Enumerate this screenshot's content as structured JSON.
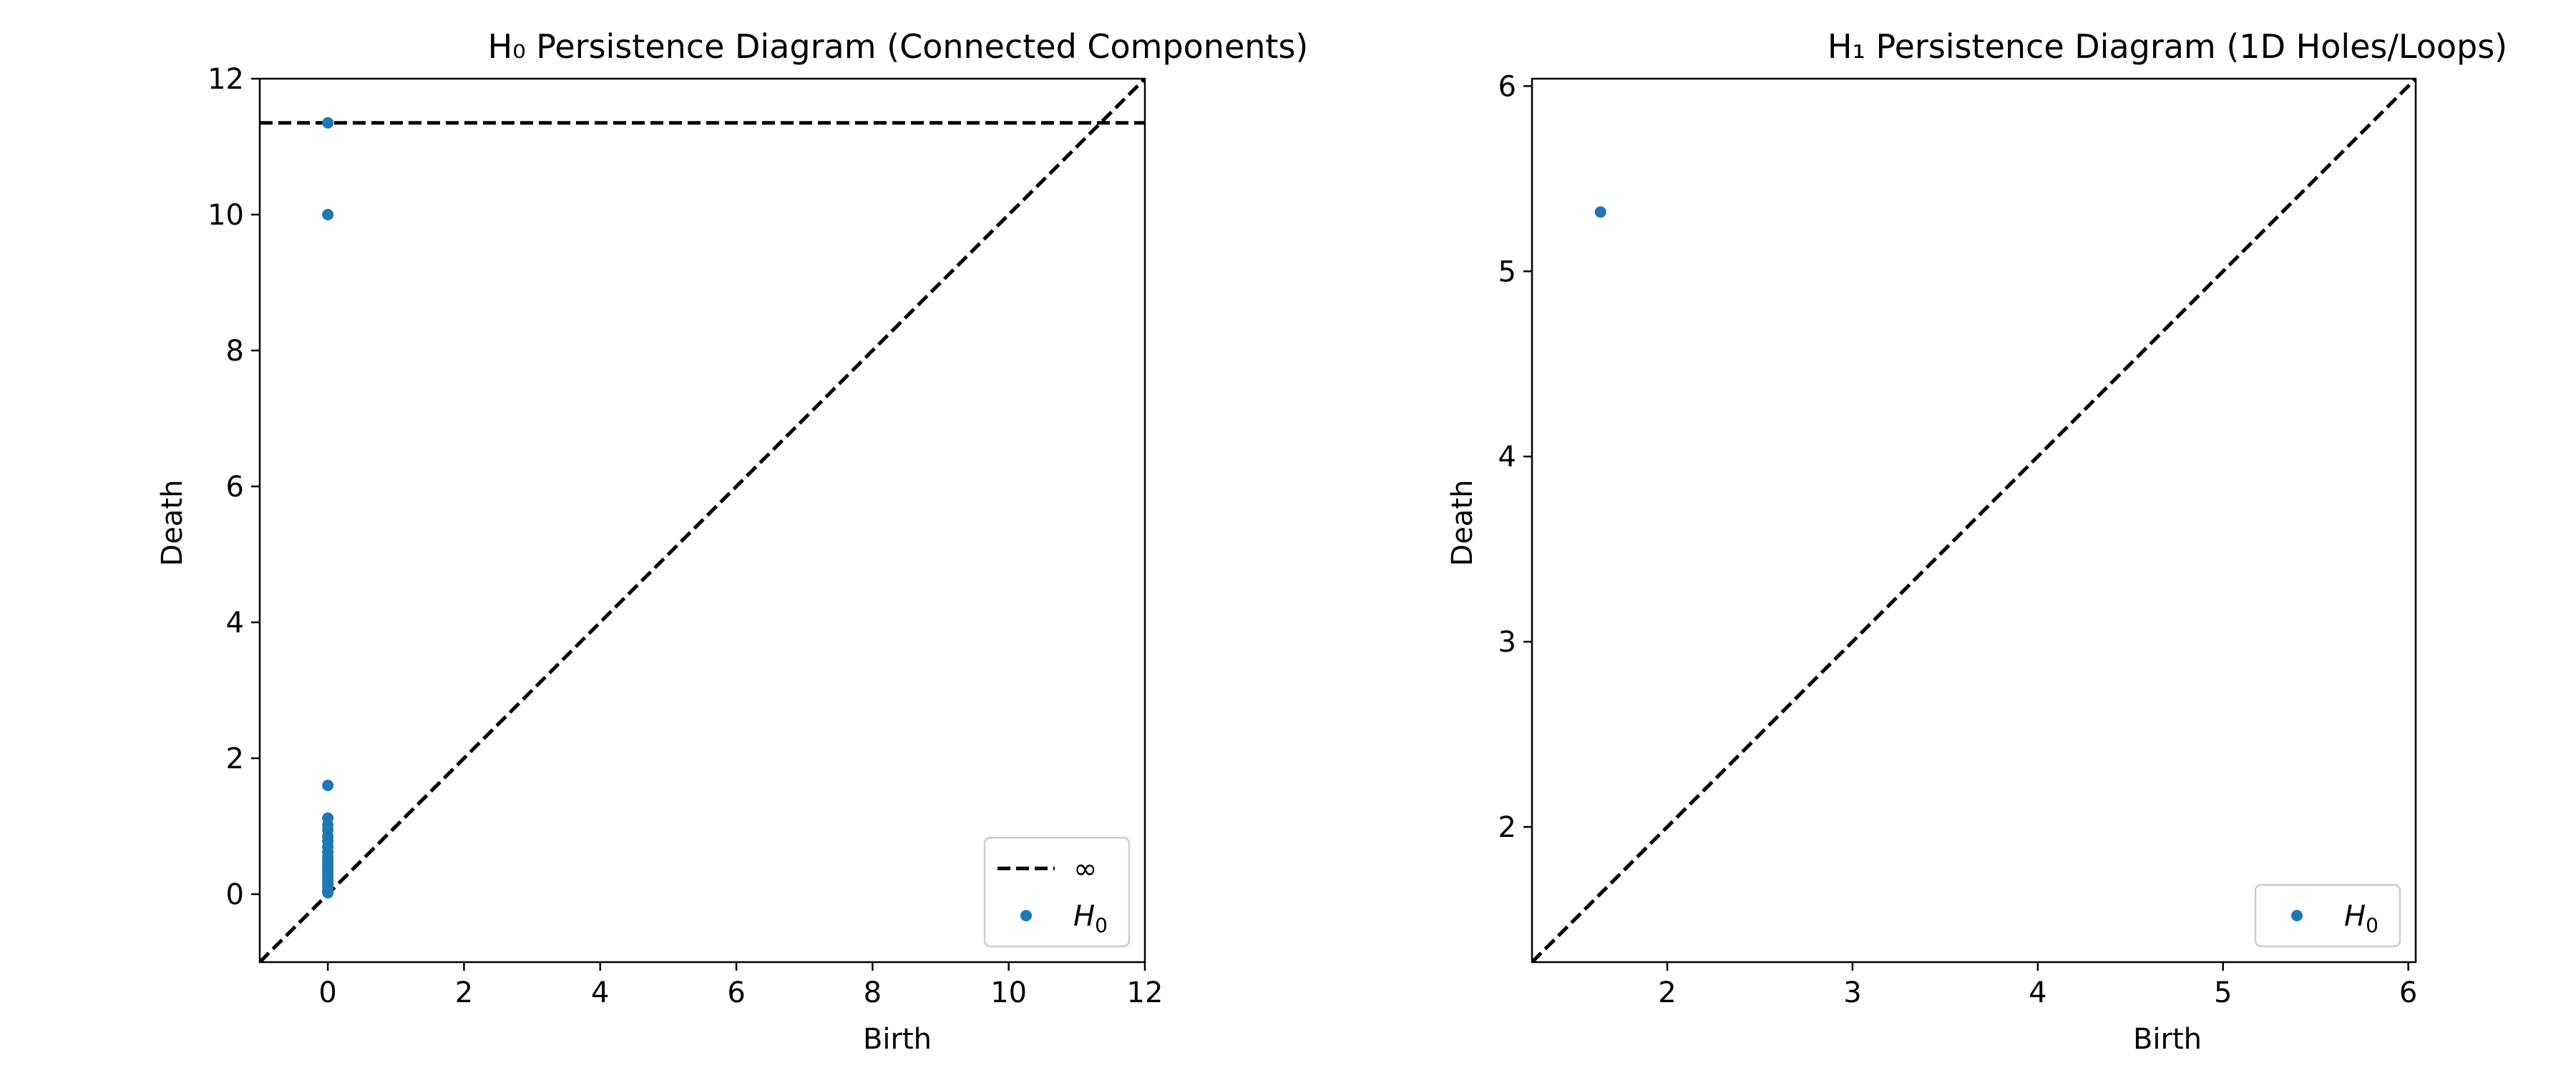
{
  "chart_data": [
    {
      "type": "scatter",
      "title": "H₀ Persistence Diagram (Connected Components)",
      "xlabel": "Birth",
      "ylabel": "Death",
      "xlim": [
        -1,
        12
      ],
      "ylim": [
        -1,
        12
      ],
      "xticks": [
        "0",
        "2",
        "4",
        "6",
        "8",
        "10",
        "12"
      ],
      "yticks": [
        "0",
        "2",
        "4",
        "6",
        "8",
        "10",
        "12"
      ],
      "grid": false,
      "point_color": "#1f77b4",
      "diagonal": true,
      "infinity_line": 11.35,
      "legend_position": "lower-right",
      "legend": [
        {
          "kind": "dashed-line",
          "label": "∞"
        },
        {
          "kind": "marker",
          "label_base": "H",
          "label_sub": "0"
        }
      ],
      "series": [
        {
          "name": "H0",
          "points": [
            [
              0,
              11.35
            ],
            [
              0,
              10.0
            ],
            [
              0,
              1.6
            ],
            [
              0,
              1.12
            ],
            [
              0,
              1.02
            ],
            [
              0,
              0.95
            ],
            [
              0,
              0.85
            ],
            [
              0,
              0.78
            ],
            [
              0,
              0.7
            ],
            [
              0,
              0.62
            ],
            [
              0,
              0.55
            ],
            [
              0,
              0.5
            ],
            [
              0,
              0.45
            ],
            [
              0,
              0.4
            ],
            [
              0,
              0.35
            ],
            [
              0,
              0.3
            ],
            [
              0,
              0.25
            ],
            [
              0,
              0.2
            ],
            [
              0,
              0.15
            ],
            [
              0,
              0.1
            ],
            [
              0,
              0.05
            ],
            [
              0,
              0.02
            ]
          ]
        }
      ]
    },
    {
      "type": "scatter",
      "title": "H₁ Persistence Diagram (1D Holes/Loops)",
      "xlabel": "Birth",
      "ylabel": "Death",
      "xlim": [
        1.27,
        6.04
      ],
      "ylim": [
        1.27,
        6.04
      ],
      "xticks": [
        "2",
        "3",
        "4",
        "5",
        "6"
      ],
      "yticks": [
        "2",
        "3",
        "4",
        "5",
        "6"
      ],
      "grid": false,
      "point_color": "#1f77b4",
      "diagonal": true,
      "legend_position": "lower-right",
      "legend": [
        {
          "kind": "marker",
          "label_base": "H",
          "label_sub": "0"
        }
      ],
      "series": [
        {
          "name": "H0",
          "points": [
            [
              1.64,
              5.32
            ]
          ]
        }
      ]
    }
  ]
}
